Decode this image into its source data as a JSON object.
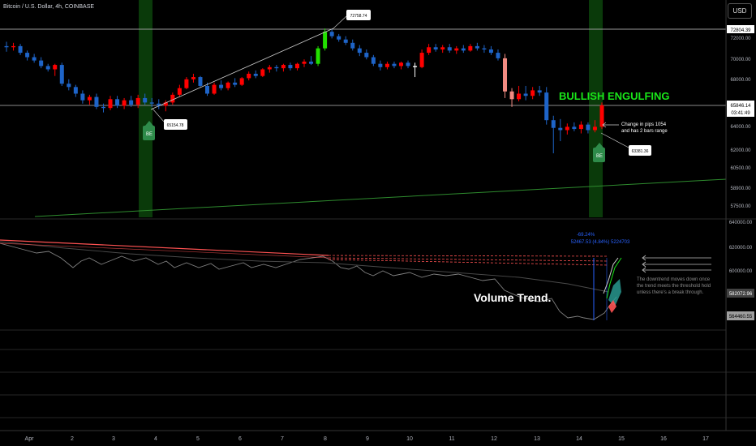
{
  "header": {
    "symbol_title": "Bitcoin / U.S. Dollar, 4h, COINBASE",
    "currency_button": "USD"
  },
  "colors": {
    "background": "#000000",
    "up_candle": "#ff0000",
    "down_candle": "#1e64c8",
    "bright_green_candle": "#22e000",
    "white_candle": "#ffffff",
    "highlight_band": "#0a3a0a",
    "trendline_green": "#2e8b2e",
    "resistance_red": "#ff5252",
    "annotation_green": "#19e619",
    "badge_green": "#2e8b4a"
  },
  "price_axis": {
    "ticks": [
      "72000.00",
      "70000.00",
      "68000.00",
      "66000.00",
      "64000.00",
      "62000.00",
      "60500.00",
      "58900.00",
      "57500.00"
    ],
    "marker_high": "72804.39",
    "marker_current": "65846.14",
    "marker_timer": "03:41:49"
  },
  "indicator_axis": {
    "ticks": [
      "640000.00",
      "620000.00",
      "600000.00"
    ],
    "marker_a": "582072.96",
    "marker_b": "564460.55"
  },
  "time_axis": {
    "labels": [
      "Apr",
      "2",
      "3",
      "4",
      "5",
      "6",
      "7",
      "8",
      "9",
      "10",
      "11",
      "12",
      "13",
      "14",
      "15",
      "16",
      "17"
    ]
  },
  "annotations": {
    "pattern_label": "BULLISH ENGULFING",
    "high_callout": "72758.74",
    "low_callout_1": "65154.78",
    "low_callout_2": "63381.36",
    "pips_note_line1": "Change in pips 1054",
    "pips_note_line2": "and has 2 bars range",
    "badge_1": "BE",
    "badge_2": "BE",
    "volume_title": "Volume Trend.",
    "volume_note_line1": "The downtrend moves down once",
    "volume_note_line2": "the trend meets the threshold hold",
    "volume_note_line3": "unless there's a break through.",
    "measure_line1": "-69.24%",
    "measure_line2": "52467.53 (4.84%) 5224703"
  },
  "candles": [
    {
      "o": 71200,
      "h": 71600,
      "l": 70700,
      "c": 71100
    },
    {
      "o": 71100,
      "h": 71500,
      "l": 70800,
      "c": 71200
    },
    {
      "o": 71200,
      "h": 71400,
      "l": 70400,
      "c": 70600
    },
    {
      "o": 70600,
      "h": 70800,
      "l": 69900,
      "c": 70200
    },
    {
      "o": 70200,
      "h": 70500,
      "l": 69700,
      "c": 69900
    },
    {
      "o": 69900,
      "h": 70200,
      "l": 69200,
      "c": 69400
    },
    {
      "o": 69400,
      "h": 69600,
      "l": 68900,
      "c": 69100
    },
    {
      "o": 69100,
      "h": 69600,
      "l": 68500,
      "c": 69500
    },
    {
      "o": 69500,
      "h": 69700,
      "l": 67600,
      "c": 67800
    },
    {
      "o": 67800,
      "h": 68200,
      "l": 67200,
      "c": 67500
    },
    {
      "o": 67500,
      "h": 67700,
      "l": 66600,
      "c": 66900
    },
    {
      "o": 66900,
      "h": 67200,
      "l": 66000,
      "c": 66300
    },
    {
      "o": 66300,
      "h": 66800,
      "l": 65900,
      "c": 66600
    },
    {
      "o": 66600,
      "h": 66900,
      "l": 65500,
      "c": 65700
    },
    {
      "o": 65700,
      "h": 66000,
      "l": 65200,
      "c": 65600
    },
    {
      "o": 65600,
      "h": 66700,
      "l": 65400,
      "c": 66400
    },
    {
      "o": 66400,
      "h": 66700,
      "l": 65600,
      "c": 65800
    },
    {
      "o": 65800,
      "h": 66500,
      "l": 65500,
      "c": 66300
    },
    {
      "o": 66300,
      "h": 66700,
      "l": 65700,
      "c": 65900
    },
    {
      "o": 65900,
      "h": 66800,
      "l": 65600,
      "c": 66500
    },
    {
      "o": 66500,
      "h": 66900,
      "l": 65900,
      "c": 66100
    },
    {
      "o": 66100,
      "h": 66500,
      "l": 65700,
      "c": 66000
    },
    {
      "o": 66000,
      "h": 66400,
      "l": 65500,
      "c": 65800
    },
    {
      "o": 65800,
      "h": 66300,
      "l": 65300,
      "c": 66100
    },
    {
      "o": 66100,
      "h": 67000,
      "l": 65900,
      "c": 66800
    },
    {
      "o": 66800,
      "h": 67700,
      "l": 66600,
      "c": 67400
    },
    {
      "o": 67400,
      "h": 68400,
      "l": 67300,
      "c": 68200
    },
    {
      "o": 68200,
      "h": 68700,
      "l": 67900,
      "c": 68400
    },
    {
      "o": 68400,
      "h": 68500,
      "l": 67500,
      "c": 67600
    },
    {
      "o": 67600,
      "h": 67900,
      "l": 66700,
      "c": 66900
    },
    {
      "o": 66900,
      "h": 67900,
      "l": 66800,
      "c": 67700
    },
    {
      "o": 67700,
      "h": 68100,
      "l": 67200,
      "c": 67400
    },
    {
      "o": 67400,
      "h": 68000,
      "l": 67200,
      "c": 67900
    },
    {
      "o": 67900,
      "h": 68300,
      "l": 67500,
      "c": 67700
    },
    {
      "o": 67700,
      "h": 68400,
      "l": 67600,
      "c": 68300
    },
    {
      "o": 68300,
      "h": 68900,
      "l": 68100,
      "c": 68700
    },
    {
      "o": 68700,
      "h": 69000,
      "l": 68300,
      "c": 68500
    },
    {
      "o": 68500,
      "h": 69200,
      "l": 68400,
      "c": 69100
    },
    {
      "o": 69100,
      "h": 69500,
      "l": 68800,
      "c": 69300
    },
    {
      "o": 69300,
      "h": 69500,
      "l": 68900,
      "c": 69200
    },
    {
      "o": 69200,
      "h": 69600,
      "l": 68900,
      "c": 69500
    },
    {
      "o": 69500,
      "h": 69700,
      "l": 69000,
      "c": 69200
    },
    {
      "o": 69200,
      "h": 69700,
      "l": 69000,
      "c": 69600
    },
    {
      "o": 69600,
      "h": 70000,
      "l": 69300,
      "c": 69800
    },
    {
      "o": 69800,
      "h": 70300,
      "l": 69500,
      "c": 69600
    },
    {
      "o": 69600,
      "h": 71200,
      "l": 69400,
      "c": 71000
    },
    {
      "o": 71000,
      "h": 72800,
      "l": 70800,
      "c": 72500
    },
    {
      "o": 72500,
      "h": 72700,
      "l": 71900,
      "c": 72100
    },
    {
      "o": 72100,
      "h": 72300,
      "l": 71600,
      "c": 71800
    },
    {
      "o": 71800,
      "h": 72100,
      "l": 71300,
      "c": 71500
    },
    {
      "o": 71500,
      "h": 71800,
      "l": 70800,
      "c": 71000
    },
    {
      "o": 71000,
      "h": 71300,
      "l": 70300,
      "c": 70600
    },
    {
      "o": 70600,
      "h": 70900,
      "l": 70000,
      "c": 70200
    },
    {
      "o": 70200,
      "h": 70400,
      "l": 69400,
      "c": 69600
    },
    {
      "o": 69600,
      "h": 69900,
      "l": 69000,
      "c": 69300
    },
    {
      "o": 69300,
      "h": 69800,
      "l": 69100,
      "c": 69600
    },
    {
      "o": 69600,
      "h": 69800,
      "l": 69200,
      "c": 69400
    },
    {
      "o": 69400,
      "h": 69800,
      "l": 69100,
      "c": 69700
    },
    {
      "o": 69700,
      "h": 69900,
      "l": 69200,
      "c": 69400
    },
    {
      "o": 69400,
      "h": 69700,
      "l": 68400,
      "c": 69300
    },
    {
      "o": 69300,
      "h": 70900,
      "l": 69200,
      "c": 70600
    },
    {
      "o": 70600,
      "h": 71400,
      "l": 70400,
      "c": 71100
    },
    {
      "o": 71100,
      "h": 71400,
      "l": 70700,
      "c": 70900
    },
    {
      "o": 70900,
      "h": 71300,
      "l": 70600,
      "c": 71100
    },
    {
      "o": 71100,
      "h": 71400,
      "l": 70600,
      "c": 70800
    },
    {
      "o": 70800,
      "h": 71200,
      "l": 70500,
      "c": 71000
    },
    {
      "o": 71000,
      "h": 71300,
      "l": 70600,
      "c": 70800
    },
    {
      "o": 70800,
      "h": 71400,
      "l": 70700,
      "c": 71200
    },
    {
      "o": 71200,
      "h": 71500,
      "l": 70800,
      "c": 71000
    },
    {
      "o": 71000,
      "h": 71300,
      "l": 70600,
      "c": 70900
    },
    {
      "o": 70900,
      "h": 71200,
      "l": 70400,
      "c": 70600
    },
    {
      "o": 70600,
      "h": 70900,
      "l": 69900,
      "c": 70100
    },
    {
      "o": 70100,
      "h": 70500,
      "l": 66500,
      "c": 67100
    },
    {
      "o": 67100,
      "h": 67400,
      "l": 65700,
      "c": 66400
    },
    {
      "o": 66400,
      "h": 67600,
      "l": 66200,
      "c": 66900
    },
    {
      "o": 66900,
      "h": 67600,
      "l": 66300,
      "c": 66700
    },
    {
      "o": 66700,
      "h": 67500,
      "l": 66400,
      "c": 67200
    },
    {
      "o": 67200,
      "h": 67600,
      "l": 66700,
      "c": 67000
    },
    {
      "o": 67000,
      "h": 67500,
      "l": 64100,
      "c": 64500
    },
    {
      "o": 64500,
      "h": 64900,
      "l": 61500,
      "c": 63800
    },
    {
      "o": 63800,
      "h": 64600,
      "l": 62600,
      "c": 63600
    },
    {
      "o": 63600,
      "h": 64200,
      "l": 63200,
      "c": 63900
    },
    {
      "o": 63900,
      "h": 64300,
      "l": 63500,
      "c": 63700
    },
    {
      "o": 63700,
      "h": 64400,
      "l": 63300,
      "c": 64100
    },
    {
      "o": 64100,
      "h": 64300,
      "l": 63300,
      "c": 63600
    },
    {
      "o": 63600,
      "h": 64500,
      "l": 63400,
      "c": 63900
    },
    {
      "o": 63900,
      "h": 66100,
      "l": 63700,
      "c": 65850
    }
  ]
}
